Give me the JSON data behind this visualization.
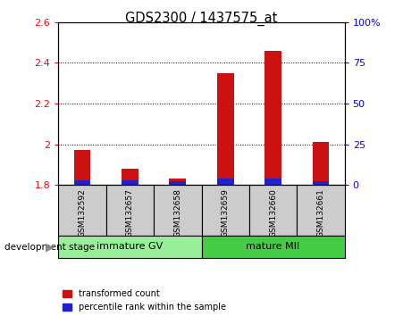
{
  "title": "GDS2300 / 1437575_at",
  "samples": [
    "GSM132592",
    "GSM132657",
    "GSM132658",
    "GSM132659",
    "GSM132660",
    "GSM132661"
  ],
  "red_values": [
    1.97,
    1.88,
    1.83,
    2.35,
    2.46,
    2.01
  ],
  "blue_percentiles": [
    3,
    3,
    2,
    4,
    4,
    2
  ],
  "ylim_left": [
    1.8,
    2.6
  ],
  "ylim_right": [
    0,
    100
  ],
  "yticks_left": [
    1.8,
    2.0,
    2.2,
    2.4,
    2.6
  ],
  "ytick_labels_left": [
    "1.8",
    "2",
    "2.2",
    "2.4",
    "2.6"
  ],
  "yticks_right": [
    0,
    25,
    50,
    75,
    100
  ],
  "ytick_labels_right": [
    "0",
    "25",
    "50",
    "75",
    "100%"
  ],
  "grid_lines": [
    2.0,
    2.2,
    2.4
  ],
  "groups": [
    {
      "label": "immature GV",
      "start": 0,
      "end": 3,
      "color": "#99ee99"
    },
    {
      "label": "mature MII",
      "start": 3,
      "end": 6,
      "color": "#44cc44"
    }
  ],
  "group_label": "development stage",
  "legend_red": "transformed count",
  "legend_blue": "percentile rank within the sample",
  "bar_width": 0.35,
  "red_color": "#cc1111",
  "blue_color": "#2222cc",
  "label_bg": "#cccccc",
  "plot_bg": "#ffffff",
  "title_fontsize": 10.5
}
